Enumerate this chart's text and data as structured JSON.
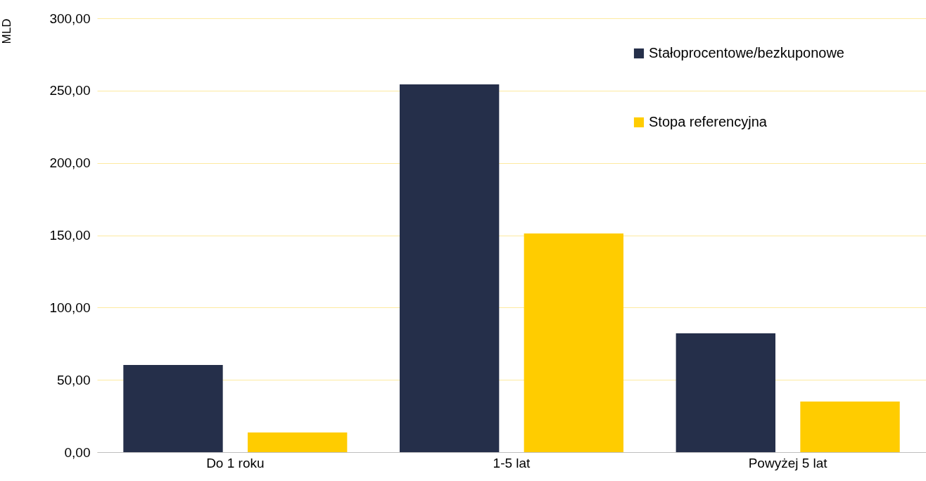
{
  "chart_data": {
    "type": "bar",
    "ylabel": "MLD",
    "categories": [
      "Do 1 roku",
      "1-5 lat",
      "Powyżej 5 lat"
    ],
    "series": [
      {
        "name": "Stałoprocentowe/bezkuponowe",
        "color": "#252f4a",
        "values": [
          60.3,
          254.3,
          82.2
        ]
      },
      {
        "name": "Stopa referencyjna",
        "color": "#ffcc00",
        "values": [
          13.6,
          151.2,
          35.0
        ]
      }
    ],
    "ylim": [
      0,
      300
    ],
    "yticks": [
      {
        "value": 0,
        "label": "0,00"
      },
      {
        "value": 50,
        "label": "50,00"
      },
      {
        "value": 100,
        "label": "100,00"
      },
      {
        "value": 150,
        "label": "150,00"
      },
      {
        "value": 200,
        "label": "200,00"
      },
      {
        "value": 250,
        "label": "250,00"
      },
      {
        "value": 300,
        "label": "300,00"
      }
    ],
    "grid": "y",
    "legend": "top right"
  }
}
